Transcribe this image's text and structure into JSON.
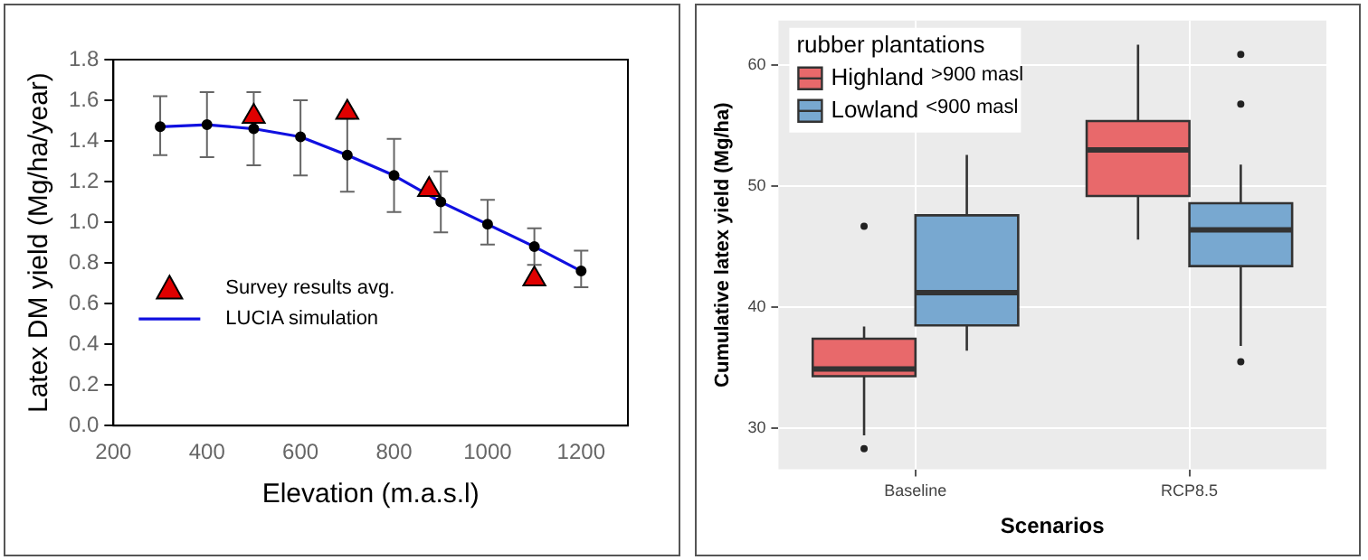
{
  "chart_data": [
    {
      "type": "line",
      "xlabel": "Elevation (m.a.s.l)",
      "ylabel": "Latex DM yield (Mg/ha/year)",
      "xlim": [
        200,
        1300
      ],
      "xticks": [
        200,
        400,
        600,
        800,
        1000,
        1200
      ],
      "ylim": [
        0,
        1.8
      ],
      "yticks": [
        {
          "value": 0,
          "label": "0.0"
        },
        0.2,
        0.4,
        0.6,
        0.8,
        {
          "value": 1,
          "label": "1.0"
        },
        1.2,
        1.4,
        1.6,
        1.8
      ],
      "grid": false,
      "legend": "bottom left",
      "series": [
        {
          "name": "Survey results avg.",
          "type": "scatter",
          "marker": "triangle",
          "color": "#e00000",
          "x": [
            500,
            700,
            875,
            1100
          ],
          "values": [
            1.52,
            1.54,
            1.16,
            0.72
          ]
        },
        {
          "name": "LUCIA simulation",
          "type": "line",
          "marker": "circle",
          "color": "#1010e0",
          "x": [
            300,
            400,
            500,
            600,
            700,
            800,
            900,
            1000,
            1100,
            1200
          ],
          "values": [
            1.47,
            1.48,
            1.46,
            1.42,
            1.33,
            1.23,
            1.1,
            0.99,
            0.88,
            0.76
          ],
          "errors": [
            [
              1.33,
              1.62
            ],
            [
              1.32,
              1.64
            ],
            [
              1.28,
              1.64
            ],
            [
              1.23,
              1.6
            ],
            [
              1.15,
              1.51
            ],
            [
              1.05,
              1.41
            ],
            [
              0.95,
              1.25
            ],
            [
              0.89,
              1.11
            ],
            [
              0.79,
              0.97
            ],
            [
              0.68,
              0.86
            ]
          ]
        }
      ]
    },
    {
      "type": "box",
      "xlabel": "Scenarios",
      "ylabel": "Cumulative latex yield (Mg/ha)",
      "categories": [
        "Baseline",
        "RCP8.5"
      ],
      "ylim": [
        26.6,
        63.7
      ],
      "yticks": [
        30,
        40,
        50,
        60
      ],
      "grid": true,
      "legend": "top left",
      "legend_title": "rubber plantations",
      "annotations": [
        ">900 masl",
        "<900 masl"
      ],
      "series": [
        {
          "name": "Highland",
          "color": "#e8696b",
          "boxes": [
            {
              "low": 29.4,
              "q1": 34.3,
              "median": 34.9,
              "q3": 37.4,
              "high": 38.4,
              "outliers": [
                28.3,
                46.7
              ]
            },
            {
              "low": 45.6,
              "q1": 49.2,
              "median": 53.0,
              "q3": 55.4,
              "high": 61.7
            }
          ]
        },
        {
          "name": "Lowland",
          "color": "#78a8d0",
          "boxes": [
            {
              "low": 36.4,
              "q1": 38.5,
              "median": 41.2,
              "q3": 47.6,
              "high": 52.6
            },
            {
              "low": 36.8,
              "q1": 43.4,
              "median": 46.4,
              "q3": 48.6,
              "high": 51.8,
              "outliers": [
                60.9,
                56.8,
                35.5
              ]
            }
          ]
        }
      ]
    }
  ]
}
